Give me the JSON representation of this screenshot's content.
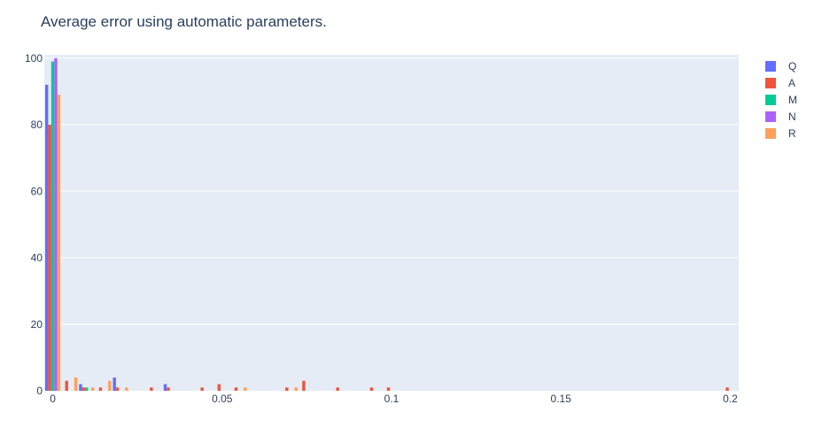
{
  "chart_data": {
    "type": "bar",
    "title": "Average error using automatic parameters.",
    "xlabel": "",
    "ylabel": "",
    "xlim": [
      -0.0025,
      0.2025
    ],
    "ylim": [
      0,
      101
    ],
    "x_ticks": [
      0,
      0.05,
      0.1,
      0.15,
      0.2
    ],
    "x_tick_labels": [
      "0",
      "0.05",
      "0.1",
      "0.15",
      "0.2"
    ],
    "y_ticks": [
      0,
      20,
      40,
      60,
      80,
      100
    ],
    "y_tick_labels": [
      "0",
      "20",
      "40",
      "60",
      "80",
      "100"
    ],
    "bin_width": 0.005,
    "grid": true,
    "legend_position": "top-right",
    "background_color": "#e5ecf6",
    "series": [
      {
        "name": "Q",
        "color": "#636efa",
        "bins": [
          0,
          0.005,
          0.01,
          0.02,
          0.035
        ],
        "values": [
          92,
          0,
          2,
          4,
          2
        ]
      },
      {
        "name": "A",
        "color": "#ef553b",
        "bins": [
          0,
          0.005,
          0.01,
          0.015,
          0.02,
          0.03,
          0.035,
          0.045,
          0.05,
          0.055,
          0.07,
          0.075,
          0.085,
          0.095,
          0.1,
          0.2
        ],
        "values": [
          80,
          3,
          1,
          1,
          1,
          1,
          1,
          1,
          2,
          1,
          1,
          3,
          1,
          1,
          1,
          1
        ]
      },
      {
        "name": "M",
        "color": "#00cc96",
        "bins": [
          0,
          0.01
        ],
        "values": [
          99,
          1
        ]
      },
      {
        "name": "N",
        "color": "#ab63fa",
        "bins": [
          0
        ],
        "values": [
          100
        ]
      },
      {
        "name": "R",
        "color": "#ffa15a",
        "bins": [
          0,
          0.005,
          0.01,
          0.015,
          0.02,
          0.055,
          0.07
        ],
        "values": [
          89,
          4,
          1,
          3,
          1,
          1,
          1
        ]
      }
    ]
  }
}
